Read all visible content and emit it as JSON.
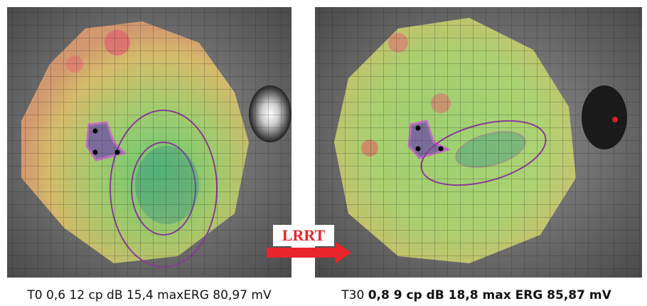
{
  "panels": [
    {
      "caption": "T0 0,6 12 cp dB 15,4 maxERG 80,97 mV"
    },
    {
      "caption_prefix": "T30",
      "caption_bold": "0,8 9 cp dB 18,8 max ERG 85,87 mV"
    }
  ],
  "arrow_label": "LRRT"
}
